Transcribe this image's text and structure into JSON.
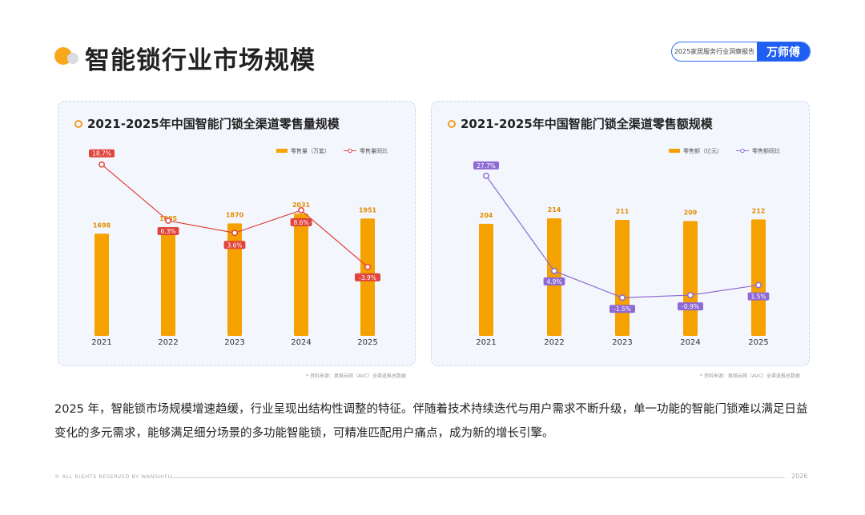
{
  "header": {
    "title": "智能锁行业市场规模",
    "badge_text": "2025家居服务行业洞察报告",
    "brand": "万师傅"
  },
  "colors": {
    "bar": "#f5a100",
    "line_left": "#e0443c",
    "line_right": "#8e6ad4",
    "ring": "#f39c1f",
    "brand": "#1f5ef2"
  },
  "chart_data": [
    {
      "type": "bar",
      "title": "2021-2025年中国智能门锁全渠道零售量规模",
      "categories": [
        "2021",
        "2022",
        "2023",
        "2024",
        "2025"
      ],
      "series": [
        {
          "name": "零售量（万套）",
          "type": "bar",
          "values": [
            1698,
            1805,
            1870,
            2031,
            1951
          ],
          "labels": [
            "1698",
            "1805",
            "1870",
            "2031",
            "1951"
          ]
        },
        {
          "name": "零售量同比",
          "type": "line",
          "values": [
            18.7,
            6.3,
            3.6,
            8.6,
            -3.9
          ],
          "labels": [
            "18.7%",
            "6.3%",
            "3.6%",
            "8.6%",
            "-3.9%"
          ]
        }
      ],
      "ylim_bar": [
        0,
        2300
      ],
      "ylim_line": [
        -8,
        22
      ],
      "legend": "top-right",
      "source": "* 资料来源：奥维云网（AVC）全渠道推总数据"
    },
    {
      "type": "bar",
      "title": "2021-2025年中国智能门锁全渠道零售额规模",
      "categories": [
        "2021",
        "2022",
        "2023",
        "2024",
        "2025"
      ],
      "series": [
        {
          "name": "零售额（亿元）",
          "type": "bar",
          "values": [
            204,
            214,
            211,
            209,
            212
          ],
          "labels": [
            "204",
            "214",
            "211",
            "209",
            "212"
          ]
        },
        {
          "name": "零售额同比",
          "type": "line",
          "values": [
            27.7,
            4.9,
            -1.5,
            -0.9,
            1.5
          ],
          "labels": [
            "27.7%",
            "4.9%",
            "-1.5%",
            "-0.9%",
            "1.5%"
          ]
        }
      ],
      "ylim_bar": [
        0,
        214
      ],
      "ylim_line": [
        -12,
        34
      ],
      "legend": "top-right",
      "source": "* 资料来源：奥维云网（AVC）全渠道推总数据"
    }
  ],
  "body_text": "2025 年，智能锁市场规模增速趋缓，行业呈现出结构性调整的特征。伴随着技术持续迭代与用户需求不断升级，单一功能的智能门锁难以满足日益变化的多元需求，能够满足细分场景的多功能智能锁，可精准匹配用户痛点，成为新的增长引擎。",
  "footer": {
    "rights": "© ALL RIGHTS RESERVED BY WANSHIFU",
    "year": "2026"
  }
}
